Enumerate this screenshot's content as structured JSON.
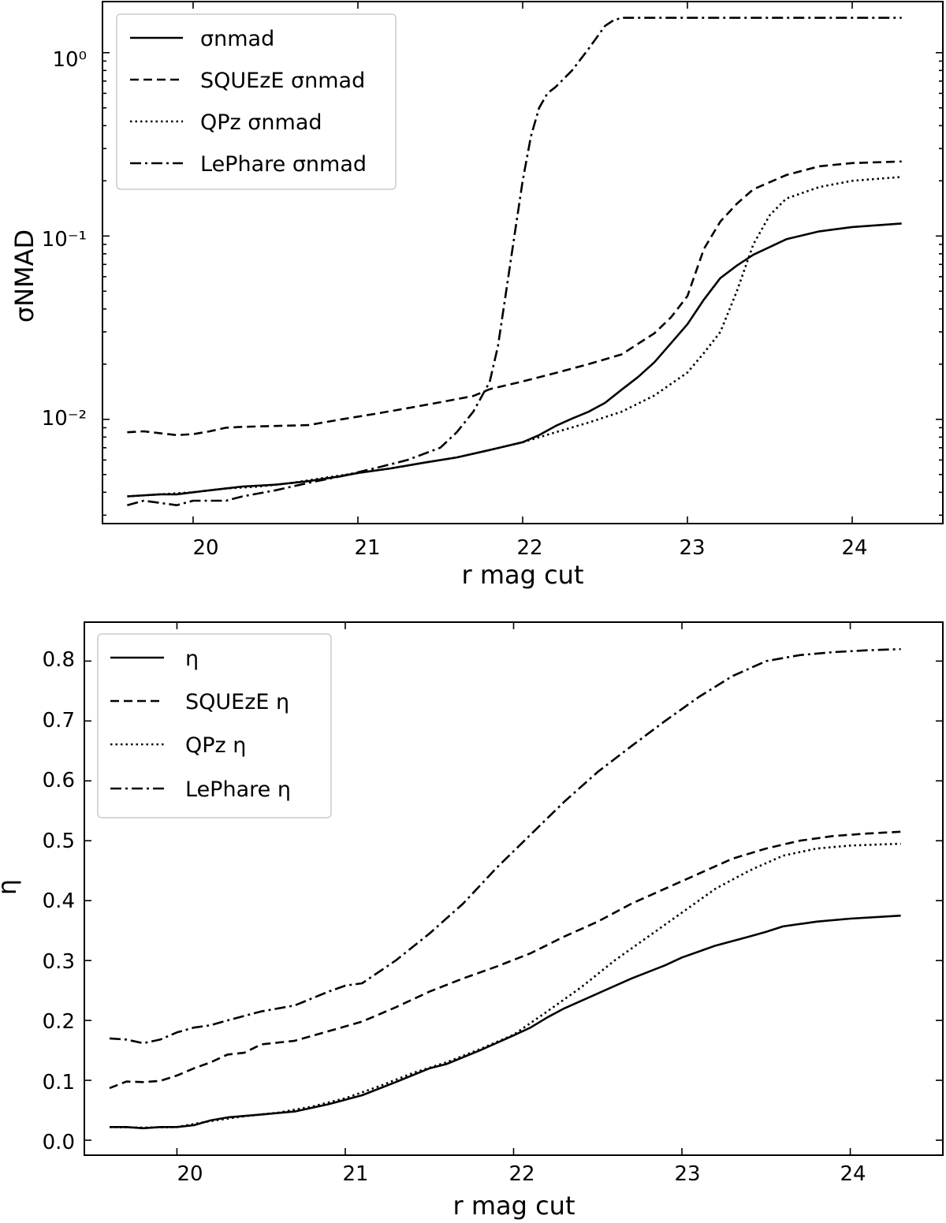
{
  "chart_data": [
    {
      "type": "line",
      "xlabel": "r mag cut",
      "ylabel": "σNMAD",
      "yscale": "log",
      "xlim": [
        19.45,
        24.55
      ],
      "ylim": [
        0.0027,
        1.9
      ],
      "xticks": [
        "20",
        "21",
        "22",
        "23",
        "24"
      ],
      "yticks": [
        "10⁻²",
        "10⁻¹",
        "10⁰"
      ],
      "legend": "top-left",
      "series": [
        {
          "name": "σnmad",
          "style": "solid",
          "x": [
            19.6,
            19.8,
            19.9,
            20.0,
            20.2,
            20.3,
            20.5,
            20.7,
            20.9,
            21.0,
            21.2,
            21.4,
            21.6,
            21.8,
            22.0,
            22.1,
            22.2,
            22.3,
            22.4,
            22.5,
            22.6,
            22.7,
            22.8,
            22.9,
            23.0,
            23.1,
            23.2,
            23.3,
            23.4,
            23.6,
            23.8,
            24.0,
            24.3
          ],
          "y": [
            0.0038,
            0.0039,
            0.0039,
            0.004,
            0.0042,
            0.0043,
            0.0044,
            0.0046,
            0.0049,
            0.0051,
            0.0054,
            0.0058,
            0.0062,
            0.0068,
            0.0075,
            0.0082,
            0.0092,
            0.0101,
            0.011,
            0.0123,
            0.0145,
            0.017,
            0.0205,
            0.026,
            0.033,
            0.045,
            0.059,
            0.069,
            0.079,
            0.096,
            0.106,
            0.112,
            0.117
          ]
        },
        {
          "name": "SQUEzE σnmad",
          "style": "dashed",
          "x": [
            19.6,
            19.7,
            19.8,
            19.9,
            20.0,
            20.1,
            20.2,
            20.3,
            20.5,
            20.7,
            20.9,
            21.1,
            21.3,
            21.5,
            21.7,
            21.8,
            22.0,
            22.2,
            22.4,
            22.6,
            22.8,
            22.9,
            23.0,
            23.1,
            23.2,
            23.3,
            23.4,
            23.6,
            23.8,
            24.0,
            24.3
          ],
          "y": [
            0.0085,
            0.0086,
            0.0084,
            0.0082,
            0.0083,
            0.0086,
            0.009,
            0.0091,
            0.0092,
            0.0093,
            0.01,
            0.0107,
            0.0115,
            0.0124,
            0.0134,
            0.0146,
            0.0161,
            0.0179,
            0.02,
            0.0226,
            0.0295,
            0.036,
            0.047,
            0.085,
            0.12,
            0.15,
            0.18,
            0.215,
            0.24,
            0.25,
            0.255
          ]
        },
        {
          "name": "QPz σnmad",
          "style": "dotted",
          "x": [
            19.6,
            19.8,
            20.0,
            20.2,
            20.4,
            20.6,
            20.8,
            21.0,
            21.2,
            21.4,
            21.6,
            21.8,
            22.0,
            22.2,
            22.4,
            22.6,
            22.8,
            23.0,
            23.1,
            23.2,
            23.3,
            23.4,
            23.5,
            23.6,
            23.8,
            24.0,
            24.3
          ],
          "y": [
            0.0038,
            0.0039,
            0.004,
            0.0042,
            0.0043,
            0.0045,
            0.0048,
            0.0051,
            0.0054,
            0.0058,
            0.0062,
            0.0068,
            0.0075,
            0.0085,
            0.0096,
            0.011,
            0.0135,
            0.018,
            0.023,
            0.03,
            0.05,
            0.09,
            0.13,
            0.16,
            0.185,
            0.2,
            0.21
          ]
        },
        {
          "name": "LePhare σnmad",
          "style": "dashdot",
          "x": [
            19.6,
            19.7,
            19.8,
            19.9,
            20.0,
            20.1,
            20.2,
            20.3,
            20.5,
            20.7,
            20.9,
            21.1,
            21.3,
            21.5,
            21.6,
            21.7,
            21.8,
            21.85,
            21.9,
            21.95,
            22.0,
            22.05,
            22.1,
            22.15,
            22.2,
            22.3,
            22.4,
            22.5,
            22.55,
            22.6,
            22.7,
            23.0,
            23.5,
            24.0,
            24.3
          ],
          "y": [
            0.0034,
            0.0036,
            0.0035,
            0.0034,
            0.0036,
            0.0036,
            0.0036,
            0.0038,
            0.0041,
            0.0045,
            0.0049,
            0.0054,
            0.006,
            0.007,
            0.0085,
            0.011,
            0.016,
            0.025,
            0.05,
            0.1,
            0.2,
            0.35,
            0.5,
            0.6,
            0.65,
            0.8,
            1.05,
            1.4,
            1.5,
            1.55,
            1.55,
            1.55,
            1.55,
            1.55,
            1.55
          ]
        }
      ]
    },
    {
      "type": "line",
      "xlabel": "r mag cut",
      "ylabel": "η",
      "yscale": "linear",
      "xlim": [
        19.45,
        24.55
      ],
      "ylim": [
        -0.025,
        0.865
      ],
      "xticks": [
        "20",
        "21",
        "22",
        "23",
        "24"
      ],
      "yticks": [
        "0.0",
        "0.1",
        "0.2",
        "0.3",
        "0.4",
        "0.5",
        "0.6",
        "0.7",
        "0.8"
      ],
      "legend": "top-left",
      "series": [
        {
          "name": "η",
          "style": "solid",
          "x": [
            19.6,
            19.7,
            19.8,
            19.9,
            20.0,
            20.1,
            20.2,
            20.3,
            20.5,
            20.7,
            20.9,
            21.1,
            21.3,
            21.5,
            21.6,
            21.8,
            22.0,
            22.1,
            22.2,
            22.3,
            22.5,
            22.7,
            22.9,
            23.0,
            23.2,
            23.4,
            23.5,
            23.6,
            23.8,
            24.0,
            24.3
          ],
          "y": [
            0.022,
            0.022,
            0.02,
            0.022,
            0.022,
            0.025,
            0.033,
            0.038,
            0.043,
            0.048,
            0.06,
            0.075,
            0.097,
            0.12,
            0.127,
            0.15,
            0.175,
            0.188,
            0.205,
            0.22,
            0.245,
            0.27,
            0.292,
            0.305,
            0.325,
            0.34,
            0.348,
            0.357,
            0.365,
            0.37,
            0.375
          ]
        },
        {
          "name": "SQUEzE η",
          "style": "dashed",
          "x": [
            19.6,
            19.7,
            19.8,
            19.9,
            20.0,
            20.1,
            20.2,
            20.3,
            20.4,
            20.5,
            20.7,
            20.9,
            21.1,
            21.3,
            21.5,
            21.7,
            21.9,
            22.1,
            22.3,
            22.5,
            22.7,
            22.9,
            23.1,
            23.3,
            23.5,
            23.7,
            23.9,
            24.1,
            24.3
          ],
          "y": [
            0.087,
            0.098,
            0.097,
            0.099,
            0.108,
            0.12,
            0.13,
            0.143,
            0.146,
            0.16,
            0.166,
            0.182,
            0.198,
            0.222,
            0.248,
            0.27,
            0.29,
            0.312,
            0.34,
            0.365,
            0.395,
            0.42,
            0.445,
            0.47,
            0.487,
            0.5,
            0.508,
            0.512,
            0.515
          ]
        },
        {
          "name": "QPz η",
          "style": "dotted",
          "x": [
            19.6,
            19.8,
            20.0,
            20.2,
            20.4,
            20.6,
            20.8,
            21.0,
            21.2,
            21.4,
            21.6,
            21.8,
            22.0,
            22.2,
            22.4,
            22.6,
            22.8,
            23.0,
            23.2,
            23.4,
            23.6,
            23.8,
            24.0,
            24.3
          ],
          "y": [
            0.022,
            0.021,
            0.022,
            0.032,
            0.04,
            0.046,
            0.056,
            0.07,
            0.09,
            0.112,
            0.13,
            0.152,
            0.176,
            0.215,
            0.255,
            0.3,
            0.34,
            0.38,
            0.42,
            0.45,
            0.475,
            0.487,
            0.492,
            0.495
          ]
        },
        {
          "name": "LePhare η",
          "style": "dashdot",
          "x": [
            19.6,
            19.7,
            19.8,
            19.9,
            20.0,
            20.1,
            20.2,
            20.3,
            20.5,
            20.7,
            20.9,
            21.0,
            21.1,
            21.3,
            21.5,
            21.7,
            21.9,
            22.1,
            22.3,
            22.5,
            22.7,
            22.9,
            23.1,
            23.3,
            23.5,
            23.7,
            23.9,
            24.1,
            24.3
          ],
          "y": [
            0.17,
            0.168,
            0.162,
            0.168,
            0.18,
            0.188,
            0.192,
            0.2,
            0.215,
            0.225,
            0.248,
            0.258,
            0.262,
            0.3,
            0.345,
            0.395,
            0.455,
            0.51,
            0.565,
            0.615,
            0.658,
            0.7,
            0.74,
            0.775,
            0.8,
            0.81,
            0.815,
            0.818,
            0.82
          ]
        }
      ]
    }
  ]
}
